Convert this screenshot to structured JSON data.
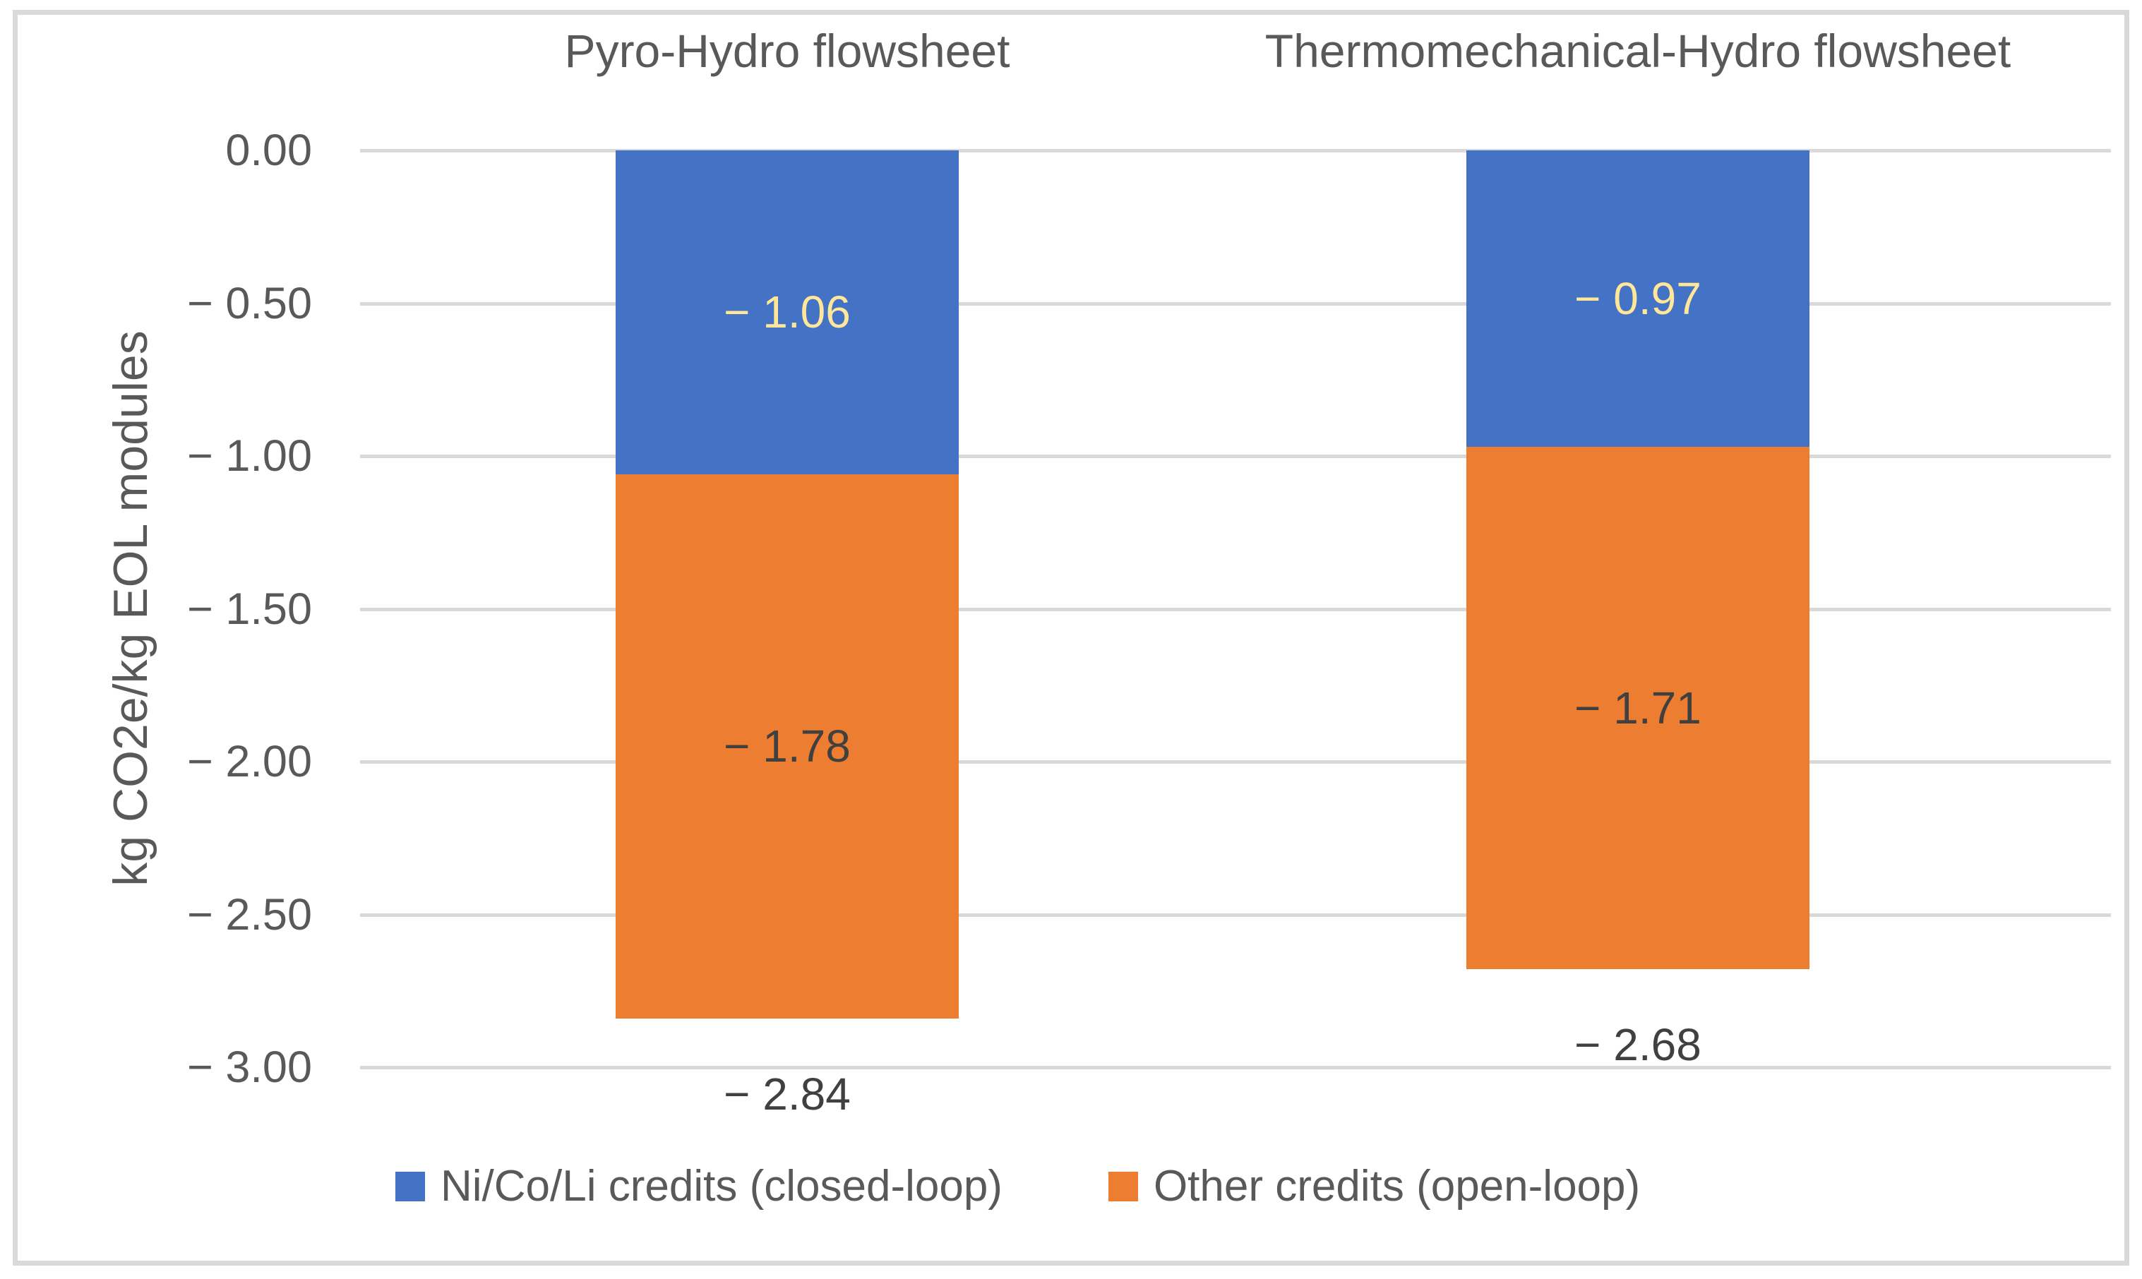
{
  "chart_data": {
    "type": "bar",
    "stacked": true,
    "orientation": "vertical",
    "categories": [
      "Pyro-Hydro flowsheet",
      "Thermomechanical-Hydro flowsheet"
    ],
    "series": [
      {
        "name": "Ni/Co/Li credits (closed-loop)",
        "color": "#4472C4",
        "values": [
          -1.06,
          -0.97
        ],
        "labels": [
          "− 1.06",
          "− 0.97"
        ],
        "label_color": "#FFE699"
      },
      {
        "name": "Other credits (open-loop)",
        "color": "#ED7D31",
        "values": [
          -1.78,
          -1.71
        ],
        "labels": [
          "− 1.78",
          "− 1.71"
        ],
        "label_color": "#404040"
      }
    ],
    "totals": {
      "values": [
        -2.84,
        -2.68
      ],
      "labels": [
        "− 2.84",
        "− 2.68"
      ],
      "label_color": "#404040"
    },
    "ylabel": "kg CO2e/kg EOL modules",
    "xlabel": "",
    "ylim": [
      -3.0,
      0.0
    ],
    "yticks": [
      {
        "value": 0.0,
        "label": "0.00"
      },
      {
        "value": -0.5,
        "label": "− 0.50"
      },
      {
        "value": -1.0,
        "label": "− 1.00"
      },
      {
        "value": -1.5,
        "label": "− 1.50"
      },
      {
        "value": -2.0,
        "label": "− 2.00"
      },
      {
        "value": -2.5,
        "label": "− 2.50"
      },
      {
        "value": -3.0,
        "label": "− 3.00"
      }
    ],
    "grid": true,
    "legend_position": "bottom"
  },
  "colors": {
    "background": "#FFFFFF",
    "frame_border": "#D9D9D9",
    "gridline": "#D9D9D9",
    "axis_text": "#595959",
    "category_title_text": "#595959",
    "series_blue": "#4472C4",
    "series_orange": "#ED7D31",
    "label_on_blue": "#FFE699",
    "label_dark": "#404040"
  }
}
